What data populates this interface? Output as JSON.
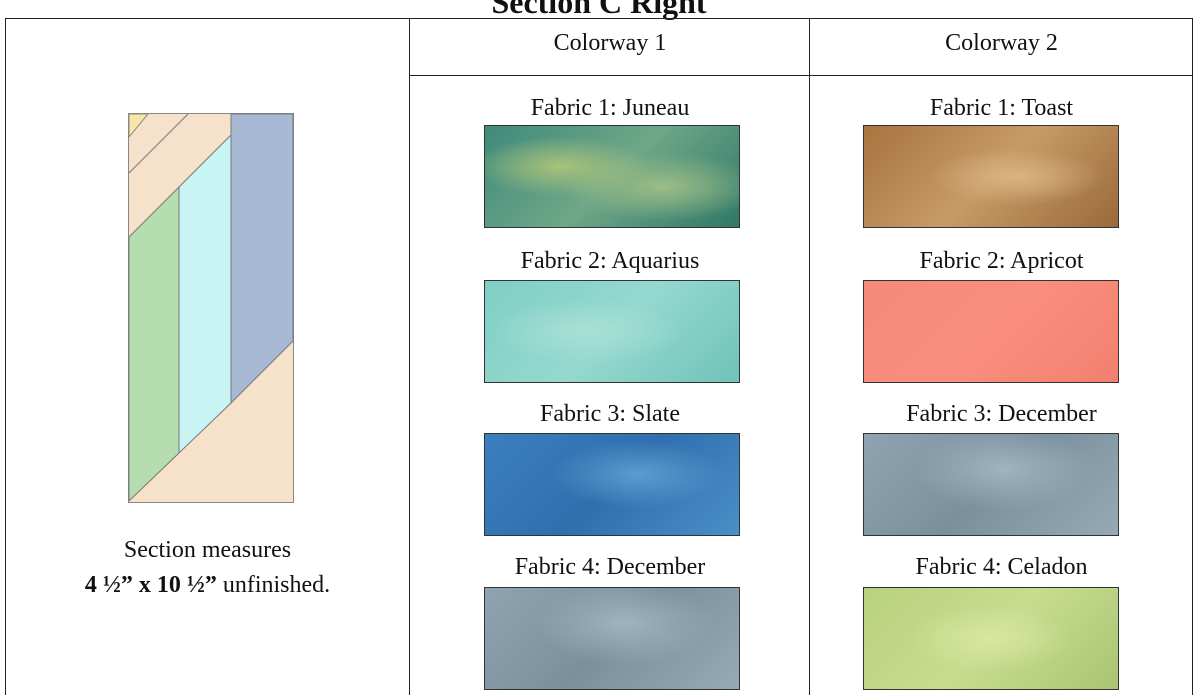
{
  "title": "Section C Right",
  "table": {
    "columns": [
      "Colorway 1",
      "Colorway 2"
    ],
    "section_note": {
      "line1": "Section measures",
      "size": "4 ½” x 10 ½”",
      "suffix": " unfinished."
    },
    "colorway1": [
      "Fabric 1: Juneau",
      "Fabric 2: Aquarius",
      "Fabric 3: Slate",
      "Fabric 4: December"
    ],
    "colorway2": [
      "Fabric 1: Toast",
      "Fabric 2: Apricot",
      "Fabric 3: December",
      "Fabric 4: Celadon"
    ]
  }
}
